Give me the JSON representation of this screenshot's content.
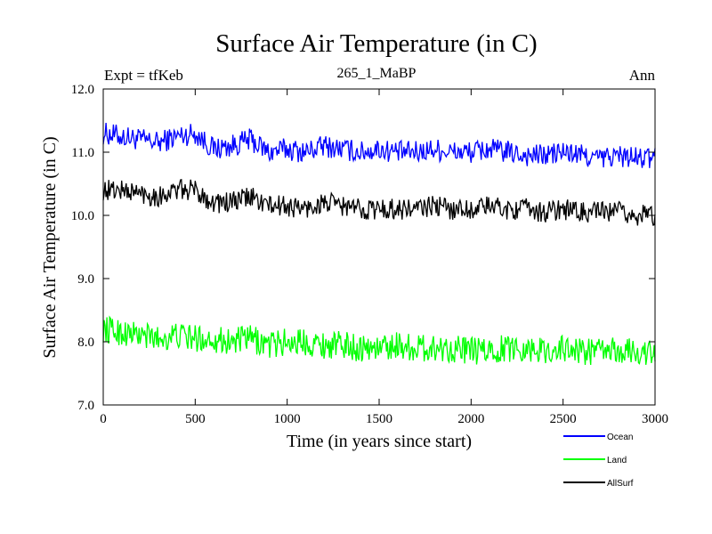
{
  "chart_data": {
    "type": "line",
    "title": "Surface Air Temperature (in C)",
    "subtitle": "265_1_MaBP",
    "left_label": "Expt = tfKeb",
    "right_label": "Ann",
    "xlabel": "Time (in years since start)",
    "ylabel": "Surface Air Temperature (in C)",
    "xlim": [
      0,
      3000
    ],
    "ylim": [
      7.0,
      12.0
    ],
    "x_ticks": [
      "0",
      "500",
      "1000",
      "1500",
      "2000",
      "2500",
      "3000"
    ],
    "y_ticks": [
      "7.0",
      "8.0",
      "9.0",
      "10.0",
      "11.0",
      "12.0"
    ],
    "grid": false,
    "legend_position": "bottom-right, below plot",
    "x": [
      0,
      100,
      200,
      300,
      400,
      500,
      600,
      700,
      800,
      900,
      1000,
      1100,
      1200,
      1300,
      1400,
      1500,
      1600,
      1700,
      1800,
      1900,
      2000,
      2100,
      2200,
      2300,
      2400,
      2500,
      2600,
      2700,
      2800,
      2900,
      3000
    ],
    "series": [
      {
        "name": "Ocean",
        "color": "#0000ff",
        "values": [
          11.3,
          11.25,
          11.2,
          11.15,
          11.25,
          11.3,
          11.05,
          11.1,
          11.2,
          11.0,
          11.05,
          11.0,
          11.1,
          11.05,
          11.0,
          11.05,
          11.0,
          11.0,
          11.05,
          11.0,
          11.0,
          11.05,
          11.0,
          10.95,
          10.95,
          11.0,
          10.95,
          10.9,
          10.95,
          10.9,
          10.9
        ]
      },
      {
        "name": "Land",
        "color": "#00ff00",
        "values": [
          8.2,
          8.15,
          8.1,
          8.05,
          8.1,
          8.05,
          8.05,
          8.0,
          8.05,
          7.95,
          8.0,
          8.0,
          7.95,
          7.95,
          7.9,
          7.9,
          7.95,
          7.9,
          7.9,
          7.9,
          7.85,
          7.85,
          7.9,
          7.9,
          7.85,
          7.9,
          7.85,
          7.85,
          7.85,
          7.85,
          7.8
        ]
      },
      {
        "name": "AllSurf",
        "color": "#000000",
        "values": [
          10.4,
          10.4,
          10.35,
          10.3,
          10.4,
          10.4,
          10.2,
          10.2,
          10.3,
          10.15,
          10.15,
          10.1,
          10.2,
          10.15,
          10.1,
          10.1,
          10.1,
          10.1,
          10.15,
          10.1,
          10.1,
          10.15,
          10.1,
          10.1,
          10.05,
          10.1,
          10.05,
          10.05,
          10.05,
          10.0,
          10.0
        ]
      }
    ]
  }
}
